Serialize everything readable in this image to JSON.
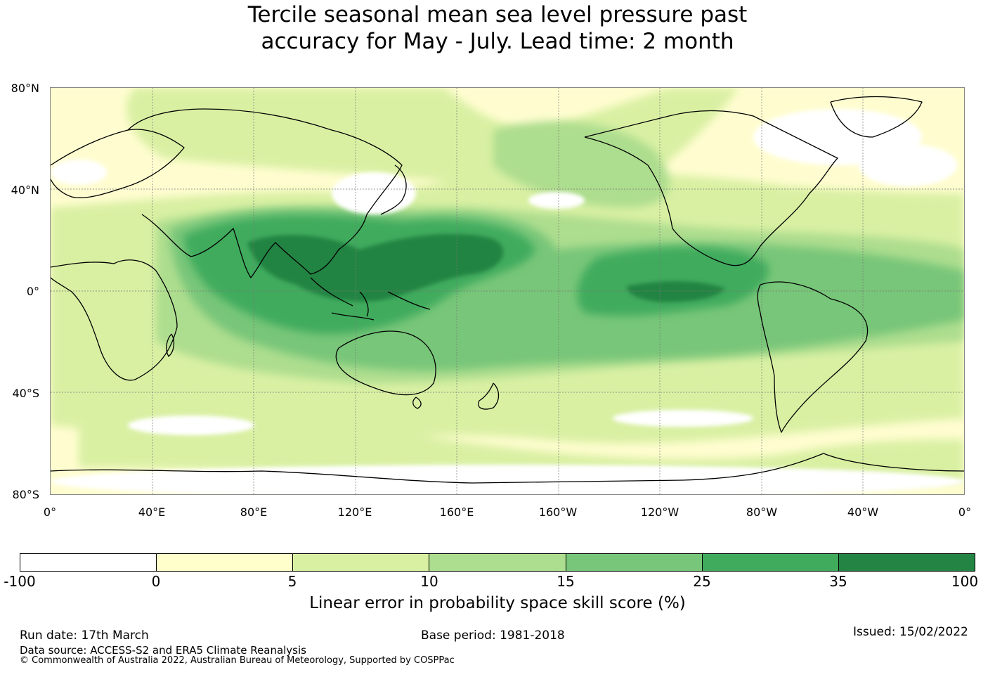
{
  "title": {
    "line1": "Tercile seasonal mean sea level pressure past",
    "line2": "accuracy for May - July. Lead time: 2 month"
  },
  "lat_labels": [
    "80°N",
    "40°N",
    "0°",
    "40°S",
    "80°S"
  ],
  "lon_labels": [
    "0°",
    "40°E",
    "80°E",
    "120°E",
    "160°E",
    "160°W",
    "120°W",
    "80°W",
    "40°W",
    "0°"
  ],
  "colorbar": {
    "colors": [
      "#ffffff",
      "#ffffcc",
      "#d9f0a3",
      "#addd8e",
      "#78c679",
      "#41ab5d",
      "#238443"
    ],
    "ticks": [
      "-100",
      "0",
      "5",
      "10",
      "15",
      "25",
      "35",
      "100"
    ],
    "label": "Linear error in probability space skill score (%)"
  },
  "footer": {
    "run_date": "Run date: 17th March",
    "base_period": "Base period: 1981-2018",
    "issued": "Issued: 15/02/2022",
    "data_source": "Data source: ACCESS-S2 and ERA5 Climate Reanalysis",
    "copyright": "© Commonwealth of Australia 2022, Australian Bureau of Meteorology, Supported by COSPPac"
  }
}
